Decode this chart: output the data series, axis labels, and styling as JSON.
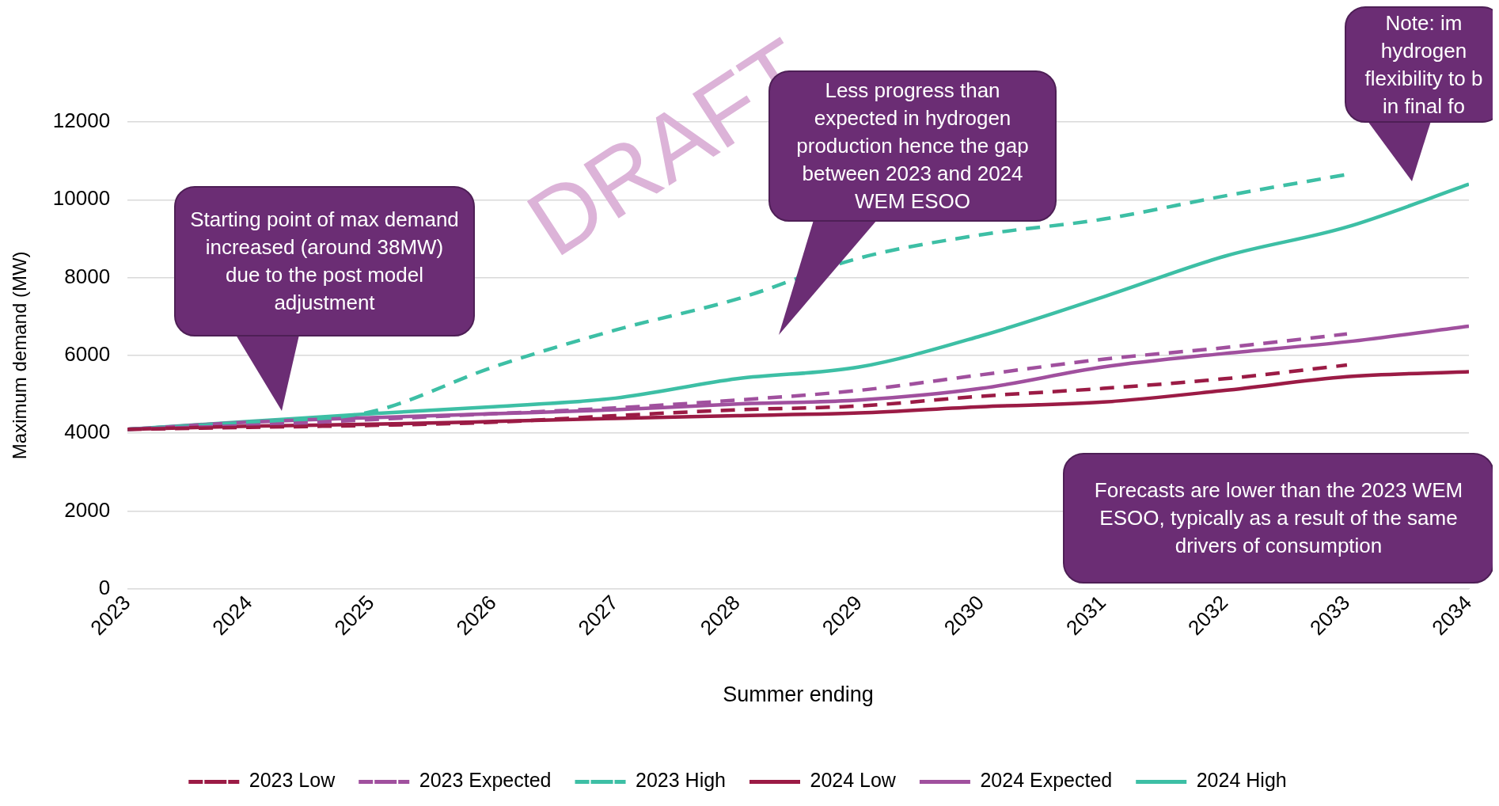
{
  "chart_data": {
    "type": "line",
    "xlabel": "Summer ending",
    "ylabel": "Maximum demand (MW)",
    "x": [
      2023,
      2024,
      2025,
      2026,
      2027,
      2028,
      2029,
      2030,
      2031,
      2032,
      2033,
      2034
    ],
    "xlim": [
      2023,
      2034
    ],
    "xticks": [
      2023,
      2024,
      2025,
      2026,
      2027,
      2028,
      2029,
      2030,
      2031,
      2032,
      2033,
      2034
    ],
    "ylim": [
      0,
      12000
    ],
    "yticks": [
      0,
      2000,
      4000,
      6000,
      8000,
      10000,
      12000
    ],
    "grid": "y",
    "legend": "bottom",
    "marker": "none",
    "series": [
      {
        "name": "2023 Low",
        "color": "#9b1b45",
        "line_style": "dashed",
        "values": [
          4100,
          4150,
          4200,
          4280,
          4450,
          4600,
          4700,
          4950,
          5150,
          5400,
          5750,
          null
        ]
      },
      {
        "name": "2023 Expected",
        "color": "#a0509e",
        "line_style": "dashed",
        "values": [
          4100,
          4200,
          4350,
          4500,
          4650,
          4850,
          5100,
          5500,
          5900,
          6200,
          6550,
          null
        ]
      },
      {
        "name": "2023 High",
        "color": "#3dbfa5",
        "line_style": "dashed",
        "values": [
          4100,
          4280,
          4550,
          5700,
          6650,
          7450,
          8500,
          9100,
          9500,
          10100,
          10650,
          null
        ]
      },
      {
        "name": "2024 Low",
        "color": "#9b1b45",
        "line_style": "solid",
        "values": [
          4100,
          4180,
          4230,
          4300,
          4380,
          4450,
          4520,
          4680,
          4800,
          5100,
          5450,
          5580
        ]
      },
      {
        "name": "2024 Expected",
        "color": "#a0509e",
        "line_style": "solid",
        "values": [
          4100,
          4280,
          4400,
          4500,
          4600,
          4750,
          4850,
          5150,
          5700,
          6050,
          6350,
          6750
        ]
      },
      {
        "name": "2024 High",
        "color": "#3dbfa5",
        "line_style": "solid",
        "values": [
          4100,
          4300,
          4500,
          4680,
          4900,
          5400,
          5700,
          6500,
          7500,
          8550,
          9300,
          10400
        ]
      }
    ],
    "annotations": [
      "DRAFT",
      "Starting point of max demand increased (around 38MW) due to the post model adjustment",
      "Less progress than expected in hydrogen production hence the gap between 2023 and 2024 WEM ESOO",
      "Note: im\nhydrogen\nflexibility to b\nin final fo",
      "Forecasts are lower than the 2023 WEM ESOO, typically as a result of the same drivers of consumption"
    ]
  }
}
